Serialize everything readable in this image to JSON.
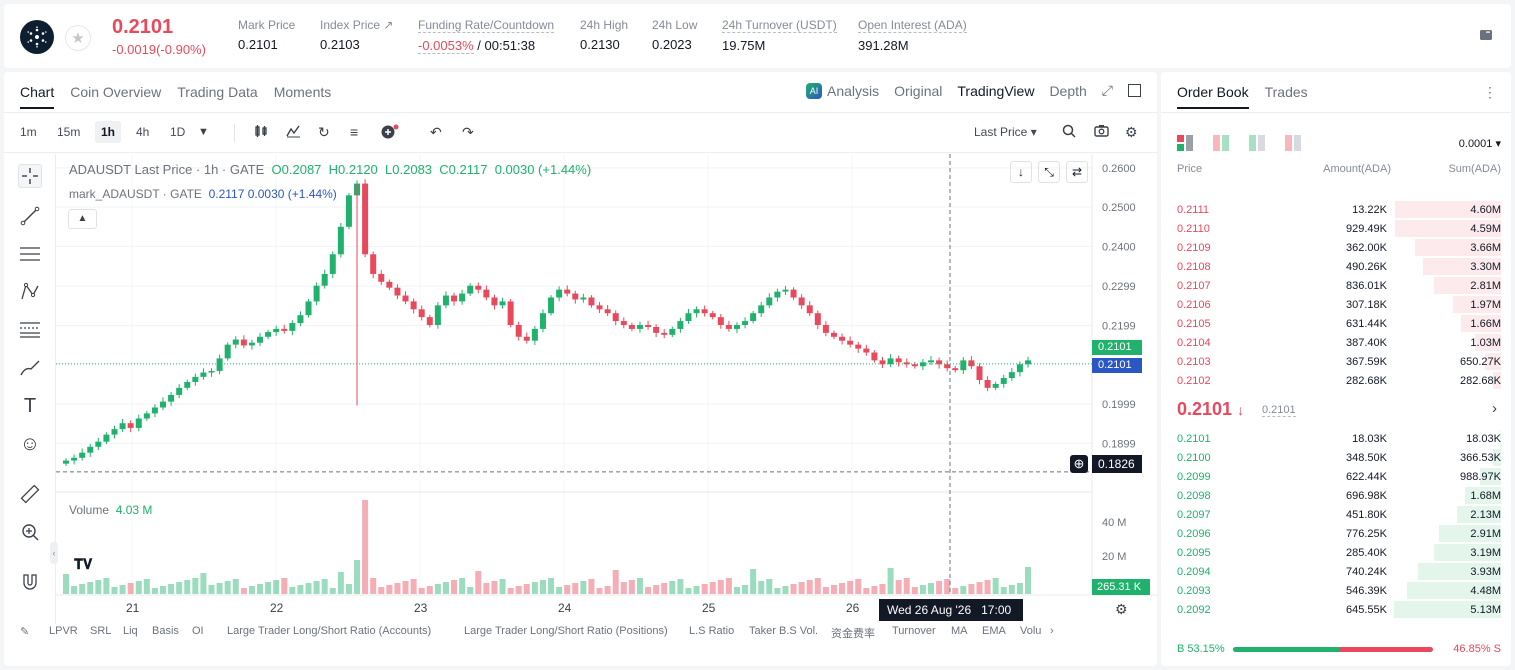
{
  "ticker": {
    "last_price": "0.2101",
    "change": "-0.0019(-0.90%)",
    "stats": [
      {
        "label": "Mark Price",
        "value": "0.2101"
      },
      {
        "label": "Index Price ↗",
        "value": "0.2103"
      },
      {
        "label": "Funding Rate/Countdown",
        "value": "-0.0053%",
        "value2": "/ 00:51:38"
      },
      {
        "label": "24h High",
        "value": "0.2130"
      },
      {
        "label": "24h Low",
        "value": "0.2023"
      },
      {
        "label": "24h Turnover (USDT)",
        "value": "19.75M"
      },
      {
        "label": "Open Interest (ADA)",
        "value": "391.28M"
      }
    ]
  },
  "chart_tabs": [
    "Chart",
    "Coin Overview",
    "Trading Data",
    "Moments"
  ],
  "view_tabs": [
    "Analysis",
    "Original",
    "TradingView",
    "Depth"
  ],
  "timeframes": [
    "1m",
    "15m",
    "1h",
    "4h",
    "1D"
  ],
  "toolbar": {
    "price_type": "Last Price ▾"
  },
  "legend": {
    "line1_prefix": "ADAUSDT Last Price · 1h · GATE",
    "open": "O0.2087",
    "high": "H0.2120",
    "low": "L0.2083",
    "close": "C0.2117",
    "change": "0.0030 (+1.44%)",
    "line2_prefix": "mark_ADAUSDT · GATE",
    "mark_value": "0.2117 0.0030 (+1.44%)"
  },
  "volume": {
    "label": "Volume",
    "value": "4.03 M"
  },
  "crosshair": {
    "price": "0.1826",
    "time": "Wed 26 Aug '26   17:00"
  },
  "price_tags": {
    "mark": "0.2101",
    "last": "0.2101",
    "vol": "265.31 K"
  },
  "bottom_indicators": [
    "LPVR",
    "SRL",
    "Liq",
    "Basis",
    "OI",
    "Large Trader Long/Short Ratio (Accounts)",
    "Large Trader Long/Short Ratio (Positions)",
    "L.S Ratio",
    "Taker B.S Vol.",
    "资金费率",
    "Turnover",
    "MA",
    "EMA",
    "Volu"
  ],
  "chart_data": {
    "type": "candlestick",
    "y_axis_ticks": [
      "0.2600",
      "0.2500",
      "0.2400",
      "0.2299",
      "0.2199",
      "0.1999",
      "0.1899"
    ],
    "volume_axis_ticks": [
      "40 M",
      "20 M"
    ],
    "x_axis_ticks": [
      "21",
      "22",
      "23",
      "24",
      "25",
      "26"
    ],
    "price_series_approx": [
      0.1855,
      0.1862,
      0.1875,
      0.189,
      0.1903,
      0.1921,
      0.1935,
      0.195,
      0.1938,
      0.1962,
      0.1975,
      0.199,
      0.2005,
      0.2022,
      0.204,
      0.2055,
      0.2068,
      0.2079,
      0.2083,
      0.2115,
      0.215,
      0.2163,
      0.2148,
      0.2155,
      0.217,
      0.2182,
      0.219,
      0.2185,
      0.2205,
      0.2225,
      0.226,
      0.23,
      0.233,
      0.238,
      0.245,
      0.253,
      0.256,
      0.238,
      0.233,
      0.231,
      0.2295,
      0.2275,
      0.226,
      0.224,
      0.222,
      0.22,
      0.225,
      0.2275,
      0.226,
      0.228,
      0.23,
      0.229,
      0.227,
      0.225,
      0.226,
      0.22,
      0.217,
      0.216,
      0.219,
      0.223,
      0.227,
      0.229,
      0.228,
      0.2265,
      0.227,
      0.225,
      0.224,
      0.223,
      0.221,
      0.22,
      0.219,
      0.22,
      0.2195,
      0.218,
      0.2175,
      0.219,
      0.221,
      0.223,
      0.224,
      0.223,
      0.222,
      0.22,
      0.219,
      0.22,
      0.221,
      0.223,
      0.225,
      0.227,
      0.2285,
      0.229,
      0.227,
      0.225,
      0.223,
      0.22,
      0.218,
      0.217,
      0.216,
      0.215,
      0.214,
      0.213,
      0.211,
      0.21,
      0.2115,
      0.2105,
      0.21,
      0.2095,
      0.2105,
      0.211,
      0.21,
      0.209,
      0.2085,
      0.211,
      0.2095,
      0.206,
      0.204,
      0.205,
      0.2065,
      0.208,
      0.21,
      0.211
    ]
  },
  "orderbook": {
    "tabs": [
      "Order Book",
      "Trades"
    ],
    "precision": "0.0001 ▾",
    "headers": {
      "price": "Price",
      "amount": "Amount(ADA)",
      "sum": "Sum(ADA)"
    },
    "asks": [
      {
        "price": "0.2111",
        "amount": "13.22K",
        "sum": "4.60M",
        "depth": 0.98
      },
      {
        "price": "0.2110",
        "amount": "929.49K",
        "sum": "4.59M",
        "depth": 0.98
      },
      {
        "price": "0.2109",
        "amount": "362.00K",
        "sum": "3.66M",
        "depth": 0.8
      },
      {
        "price": "0.2108",
        "amount": "490.26K",
        "sum": "3.30M",
        "depth": 0.72
      },
      {
        "price": "0.2107",
        "amount": "836.01K",
        "sum": "2.81M",
        "depth": 0.62
      },
      {
        "price": "0.2106",
        "amount": "307.18K",
        "sum": "1.97M",
        "depth": 0.44
      },
      {
        "price": "0.2105",
        "amount": "631.44K",
        "sum": "1.66M",
        "depth": 0.37
      },
      {
        "price": "0.2104",
        "amount": "387.40K",
        "sum": "1.03M",
        "depth": 0.24
      },
      {
        "price": "0.2103",
        "amount": "367.59K",
        "sum": "650.27K",
        "depth": 0.15
      },
      {
        "price": "0.2102",
        "amount": "282.68K",
        "sum": "282.68K",
        "depth": 0.07
      }
    ],
    "mid_price": "0.2101",
    "mid_mark": "0.2101",
    "bids": [
      {
        "price": "0.2101",
        "amount": "18.03K",
        "sum": "18.03K",
        "depth": 0.01
      },
      {
        "price": "0.2100",
        "amount": "348.50K",
        "sum": "366.53K",
        "depth": 0.07
      },
      {
        "price": "0.2099",
        "amount": "622.44K",
        "sum": "988.97K",
        "depth": 0.19
      },
      {
        "price": "0.2098",
        "amount": "696.98K",
        "sum": "1.68M",
        "depth": 0.33
      },
      {
        "price": "0.2097",
        "amount": "451.80K",
        "sum": "2.13M",
        "depth": 0.41
      },
      {
        "price": "0.2096",
        "amount": "776.25K",
        "sum": "2.91M",
        "depth": 0.57
      },
      {
        "price": "0.2095",
        "amount": "285.40K",
        "sum": "3.19M",
        "depth": 0.62
      },
      {
        "price": "0.2094",
        "amount": "740.24K",
        "sum": "3.93M",
        "depth": 0.77
      },
      {
        "price": "0.2093",
        "amount": "546.39K",
        "sum": "4.48M",
        "depth": 0.87
      },
      {
        "price": "0.2092",
        "amount": "645.55K",
        "sum": "5.13M",
        "depth": 0.99
      }
    ],
    "buy_ratio": "B 53.15%",
    "sell_ratio": "46.85% S",
    "buy_fraction": 0.5315
  },
  "colors": {
    "up": "#20b26c",
    "down": "#e8495d",
    "accent": "#2b57c4"
  }
}
